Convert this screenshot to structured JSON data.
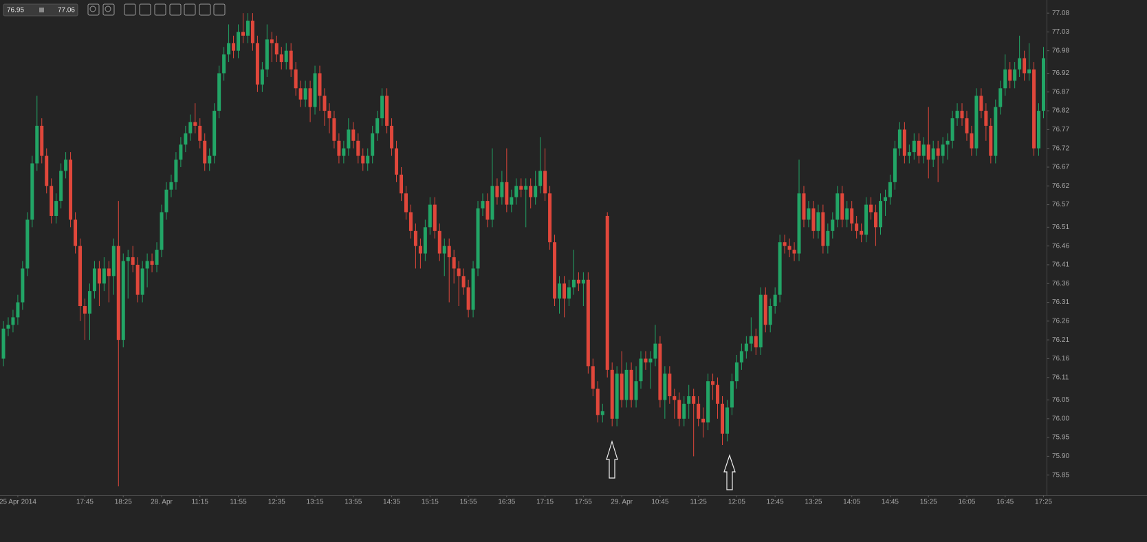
{
  "toolbar": {
    "from": "76.95",
    "to": "77.06"
  },
  "chart_data": {
    "type": "candlestick",
    "up_color": "#22a566",
    "down_color": "#e0473b",
    "ylim": [
      75.8,
      77.115
    ],
    "yticks": [
      75.85,
      {
        "value": 75.9,
        "label": "75.90"
      },
      75.95,
      {
        "value": 76,
        "label": "76.00"
      },
      76.05,
      76.11,
      76.16,
      76.21,
      76.26,
      76.31,
      76.36,
      76.41,
      76.46,
      76.51,
      76.57,
      76.62,
      76.67,
      76.72,
      76.77,
      76.82,
      76.87,
      76.92,
      76.98,
      77.03,
      77.08
    ],
    "categories": [
      null,
      null,
      null,
      "25 Apr 2014",
      null,
      null,
      null,
      null,
      null,
      null,
      null,
      null,
      null,
      null,
      null,
      null,
      null,
      "17:45",
      null,
      null,
      null,
      null,
      null,
      null,
      null,
      "18:25",
      null,
      null,
      null,
      null,
      null,
      null,
      null,
      "28. Apr",
      null,
      null,
      null,
      null,
      null,
      null,
      null,
      "11:15",
      null,
      null,
      null,
      null,
      null,
      null,
      null,
      "11:55",
      null,
      null,
      null,
      null,
      null,
      null,
      null,
      "12:35",
      null,
      null,
      null,
      null,
      null,
      null,
      null,
      "13:15",
      null,
      null,
      null,
      null,
      null,
      null,
      null,
      "13:55",
      null,
      null,
      null,
      null,
      null,
      null,
      null,
      "14:35",
      null,
      null,
      null,
      null,
      null,
      null,
      null,
      "15:15",
      null,
      null,
      null,
      null,
      null,
      null,
      null,
      "15:55",
      null,
      null,
      null,
      null,
      null,
      null,
      null,
      "16:35",
      null,
      null,
      null,
      null,
      null,
      null,
      null,
      "17:15",
      null,
      null,
      null,
      null,
      null,
      null,
      null,
      "17:55",
      null,
      null,
      null,
      null,
      null,
      null,
      null,
      "29. Apr",
      null,
      null,
      null,
      null,
      null,
      null,
      null,
      "10:45",
      null,
      null,
      null,
      null,
      null,
      null,
      null,
      "11:25",
      null,
      null,
      null,
      null,
      null,
      null,
      null,
      "12:05",
      null,
      null,
      null,
      null,
      null,
      null,
      null,
      "12:45",
      null,
      null,
      null,
      null,
      null,
      null,
      null,
      "13:25",
      null,
      null,
      null,
      null,
      null,
      null,
      null,
      "14:05",
      null,
      null,
      null,
      null,
      null,
      null,
      null,
      "14:45",
      null,
      null,
      null,
      null,
      null,
      null,
      null,
      "15:25",
      null,
      null,
      null,
      null,
      null,
      null,
      null,
      "16:05",
      null,
      null,
      null,
      null,
      null,
      null,
      null,
      "16:45",
      null,
      null,
      null,
      null,
      null,
      null,
      null,
      "17:25"
    ],
    "open": [
      76.16,
      76.24,
      76.25,
      76.27,
      76.31,
      76.4,
      76.53,
      76.68,
      76.78,
      76.7,
      76.62,
      76.54,
      76.58,
      76.66,
      76.69,
      76.53,
      76.46,
      76.3,
      76.28,
      76.34,
      76.4,
      76.36,
      76.4,
      76.38,
      76.46,
      76.21,
      76.42,
      76.43,
      76.41,
      76.33,
      76.4,
      76.42,
      76.41,
      76.45,
      76.55,
      76.61,
      76.63,
      76.69,
      76.73,
      76.76,
      76.79,
      76.78,
      76.74,
      76.68,
      76.7,
      76.82,
      76.92,
      76.97,
      77.0,
      76.98,
      77.03,
      77.02,
      77.06,
      77.0,
      76.89,
      76.93,
      77.01,
      77.0,
      76.97,
      76.95,
      76.98,
      76.93,
      76.88,
      76.85,
      76.88,
      76.83,
      76.92,
      76.86,
      76.82,
      76.8,
      76.74,
      76.7,
      76.72,
      76.77,
      76.74,
      76.7,
      76.68,
      76.7,
      76.76,
      76.8,
      76.86,
      76.78,
      76.72,
      76.65,
      76.6,
      76.55,
      76.5,
      76.46,
      76.44,
      76.51,
      76.57,
      76.5,
      76.44,
      76.46,
      76.43,
      76.4,
      76.38,
      76.35,
      76.29,
      76.4,
      76.56,
      76.58,
      76.53,
      76.62,
      76.59,
      76.63,
      76.57,
      76.59,
      76.62,
      76.61,
      76.62,
      76.59,
      76.62,
      76.66,
      76.6,
      76.47,
      76.32,
      76.36,
      76.32,
      76.35,
      76.37,
      76.36,
      76.37,
      76.14,
      76.08,
      76.01,
      76.54,
      76.13,
      76.0,
      76.12,
      76.05,
      76.13,
      76.05,
      76.1,
      76.16,
      76.15,
      76.16,
      76.2,
      76.05,
      76.12,
      76.06,
      76.05,
      76.0,
      76.04,
      76.06,
      76.04,
      76.0,
      75.99,
      76.1,
      76.09,
      76.04,
      75.96,
      76.03,
      76.1,
      76.15,
      76.18,
      76.2,
      76.22,
      76.19,
      76.33,
      76.25,
      76.3,
      76.33,
      76.47,
      76.46,
      76.45,
      76.44,
      76.6,
      76.53,
      76.56,
      76.5,
      76.55,
      76.46,
      76.5,
      76.53,
      76.6,
      76.53,
      76.56,
      76.52,
      76.5,
      76.49,
      76.57,
      76.55,
      76.51,
      76.58,
      76.59,
      76.63,
      76.72,
      76.77,
      76.7,
      76.71,
      76.74,
      76.7,
      76.73,
      76.69,
      76.72,
      76.7,
      76.73,
      76.74,
      76.8,
      76.82,
      76.8,
      76.76,
      76.72,
      76.86,
      76.82,
      76.78,
      76.7,
      76.83,
      76.88,
      76.93,
      76.9,
      76.93,
      76.96,
      76.92,
      76.93,
      76.72,
      76.82
    ],
    "high": [
      76.26,
      76.27,
      76.29,
      76.33,
      76.42,
      76.55,
      76.7,
      76.86,
      76.8,
      76.72,
      76.64,
      76.6,
      76.68,
      76.71,
      76.71,
      76.55,
      76.48,
      76.32,
      76.36,
      76.42,
      76.42,
      76.43,
      76.42,
      76.48,
      76.58,
      76.44,
      76.45,
      76.46,
      76.43,
      76.42,
      76.44,
      76.44,
      76.47,
      76.57,
      76.63,
      76.65,
      76.71,
      76.75,
      76.78,
      76.81,
      76.84,
      76.8,
      76.76,
      76.72,
      76.84,
      76.94,
      76.99,
      77.05,
      77.02,
      77.05,
      77.08,
      77.08,
      77.08,
      77.02,
      76.95,
      77.05,
      77.03,
      77.02,
      76.99,
      77.0,
      77.0,
      76.95,
      76.9,
      76.9,
      76.9,
      76.94,
      76.94,
      76.88,
      76.84,
      76.82,
      76.76,
      76.74,
      76.8,
      76.79,
      76.76,
      76.72,
      76.72,
      76.78,
      76.82,
      76.88,
      76.88,
      76.8,
      76.74,
      76.67,
      76.62,
      76.57,
      76.52,
      76.48,
      76.53,
      76.59,
      76.59,
      76.52,
      76.48,
      76.48,
      76.45,
      76.42,
      76.4,
      76.37,
      76.42,
      76.58,
      76.6,
      76.6,
      76.72,
      76.64,
      76.66,
      76.72,
      76.61,
      76.64,
      76.64,
      76.64,
      76.64,
      76.66,
      76.75,
      76.72,
      76.62,
      76.49,
      76.38,
      76.38,
      76.37,
      76.45,
      76.39,
      76.39,
      76.39,
      76.16,
      76.1,
      76.04,
      76.55,
      76.15,
      76.14,
      76.18,
      76.15,
      76.15,
      76.14,
      76.18,
      76.18,
      76.18,
      76.25,
      76.22,
      76.14,
      76.14,
      76.08,
      76.07,
      76.06,
      76.09,
      76.08,
      76.06,
      76.03,
      76.12,
      76.12,
      76.11,
      76.06,
      76.05,
      76.12,
      76.17,
      76.2,
      76.22,
      76.27,
      76.24,
      76.35,
      76.35,
      76.32,
      76.35,
      76.49,
      76.49,
      76.48,
      76.47,
      76.69,
      76.62,
      76.58,
      76.58,
      76.57,
      76.57,
      76.52,
      76.55,
      76.62,
      76.62,
      76.58,
      76.58,
      76.54,
      76.52,
      76.59,
      76.59,
      76.57,
      76.6,
      76.61,
      76.65,
      76.74,
      76.79,
      76.79,
      76.73,
      76.76,
      76.76,
      76.75,
      76.83,
      76.74,
      76.74,
      76.75,
      76.76,
      76.82,
      76.84,
      76.84,
      76.82,
      76.78,
      76.88,
      76.88,
      76.84,
      76.8,
      76.85,
      76.9,
      76.97,
      76.95,
      76.95,
      77.02,
      76.98,
      77.0,
      76.95,
      76.84,
      76.99
    ],
    "low": [
      76.14,
      76.22,
      76.23,
      76.25,
      76.29,
      76.38,
      76.51,
      76.66,
      76.68,
      76.6,
      76.52,
      76.52,
      76.56,
      76.64,
      76.51,
      76.44,
      76.26,
      76.21,
      76.21,
      76.32,
      76.3,
      76.34,
      76.31,
      76.33,
      75.82,
      76.19,
      76.32,
      76.39,
      76.31,
      76.31,
      76.35,
      76.39,
      76.39,
      76.43,
      76.53,
      76.59,
      76.61,
      76.67,
      76.71,
      76.74,
      76.76,
      76.72,
      76.66,
      76.66,
      76.68,
      76.8,
      76.9,
      76.95,
      76.96,
      76.96,
      77.0,
      77.0,
      76.98,
      76.87,
      76.87,
      76.91,
      76.95,
      76.95,
      76.93,
      76.93,
      76.91,
      76.86,
      76.83,
      76.83,
      76.79,
      76.81,
      76.82,
      76.78,
      76.76,
      76.72,
      76.68,
      76.68,
      76.7,
      76.72,
      76.68,
      76.66,
      76.66,
      76.68,
      76.74,
      76.78,
      76.76,
      76.7,
      76.63,
      76.58,
      76.53,
      76.48,
      76.4,
      76.4,
      76.42,
      76.49,
      76.48,
      76.42,
      76.38,
      76.31,
      76.36,
      76.3,
      76.33,
      76.27,
      76.27,
      76.38,
      76.54,
      76.51,
      76.51,
      76.57,
      76.57,
      76.55,
      76.55,
      76.57,
      76.59,
      76.51,
      76.56,
      76.57,
      76.6,
      76.58,
      76.45,
      76.3,
      76.28,
      76.27,
      76.3,
      76.33,
      76.34,
      76.3,
      76.12,
      76.06,
      75.99,
      75.99,
      76.11,
      75.98,
      75.98,
      76.03,
      76.03,
      76.03,
      76.03,
      76.08,
      76.13,
      76.08,
      76.14,
      76.03,
      76.0,
      76.04,
      76.0,
      75.98,
      75.98,
      76.0,
      75.9,
      75.98,
      75.95,
      75.97,
      76.05,
      76.0,
      75.93,
      75.94,
      76.01,
      76.08,
      76.13,
      76.16,
      76.18,
      76.17,
      76.17,
      76.23,
      76.23,
      76.28,
      76.31,
      76.44,
      76.43,
      76.42,
      76.42,
      76.51,
      76.51,
      76.48,
      76.48,
      76.44,
      76.44,
      76.48,
      76.51,
      76.51,
      76.51,
      76.5,
      76.48,
      76.47,
      76.47,
      76.53,
      76.46,
      76.49,
      76.54,
      76.57,
      76.61,
      76.7,
      76.68,
      76.68,
      76.69,
      76.68,
      76.68,
      76.64,
      76.67,
      76.63,
      76.68,
      76.69,
      76.72,
      76.78,
      76.78,
      76.74,
      76.7,
      76.7,
      76.8,
      76.74,
      76.68,
      76.68,
      76.81,
      76.86,
      76.88,
      76.88,
      76.91,
      76.9,
      76.9,
      76.7,
      76.7,
      76.8
    ],
    "close": [
      76.24,
      76.25,
      76.27,
      76.31,
      76.4,
      76.53,
      76.68,
      76.78,
      76.7,
      76.62,
      76.54,
      76.58,
      76.66,
      76.69,
      76.53,
      76.46,
      76.3,
      76.28,
      76.34,
      76.4,
      76.36,
      76.4,
      76.38,
      76.46,
      76.21,
      76.42,
      76.43,
      76.41,
      76.33,
      76.4,
      76.42,
      76.41,
      76.45,
      76.55,
      76.61,
      76.63,
      76.69,
      76.73,
      76.76,
      76.79,
      76.78,
      76.74,
      76.68,
      76.7,
      76.82,
      76.92,
      76.97,
      77.0,
      76.98,
      77.03,
      77.02,
      77.06,
      77.0,
      76.89,
      76.93,
      77.01,
      77.0,
      76.97,
      76.95,
      76.98,
      76.93,
      76.88,
      76.85,
      76.88,
      76.83,
      76.92,
      76.86,
      76.82,
      76.8,
      76.74,
      76.7,
      76.72,
      76.77,
      76.74,
      76.7,
      76.68,
      76.7,
      76.76,
      76.8,
      76.86,
      76.78,
      76.72,
      76.65,
      76.6,
      76.55,
      76.5,
      76.46,
      76.44,
      76.51,
      76.57,
      76.5,
      76.44,
      76.46,
      76.43,
      76.4,
      76.38,
      76.35,
      76.29,
      76.4,
      76.56,
      76.58,
      76.53,
      76.62,
      76.59,
      76.63,
      76.57,
      76.59,
      76.62,
      76.61,
      76.62,
      76.59,
      76.62,
      76.66,
      76.6,
      76.47,
      76.32,
      76.36,
      76.32,
      76.35,
      76.37,
      76.36,
      76.37,
      76.14,
      76.08,
      76.01,
      76.02,
      76.13,
      76.0,
      76.12,
      76.05,
      76.13,
      76.05,
      76.1,
      76.16,
      76.15,
      76.16,
      76.2,
      76.05,
      76.12,
      76.06,
      76.05,
      76.0,
      76.04,
      76.06,
      76.04,
      76.0,
      75.99,
      76.1,
      76.09,
      76.04,
      75.96,
      76.03,
      76.1,
      76.15,
      76.18,
      76.2,
      76.22,
      76.19,
      76.33,
      76.25,
      76.3,
      76.33,
      76.47,
      76.46,
      76.45,
      76.44,
      76.6,
      76.53,
      76.56,
      76.5,
      76.55,
      76.46,
      76.5,
      76.53,
      76.6,
      76.53,
      76.56,
      76.52,
      76.5,
      76.49,
      76.57,
      76.55,
      76.51,
      76.58,
      76.59,
      76.63,
      76.72,
      76.77,
      76.7,
      76.71,
      76.74,
      76.7,
      76.73,
      76.69,
      76.72,
      76.7,
      76.73,
      76.74,
      76.8,
      76.82,
      76.8,
      76.76,
      76.72,
      76.86,
      76.82,
      76.78,
      76.7,
      76.83,
      76.88,
      76.93,
      76.9,
      76.93,
      76.96,
      76.92,
      76.93,
      76.72,
      76.82,
      76.96
    ]
  }
}
